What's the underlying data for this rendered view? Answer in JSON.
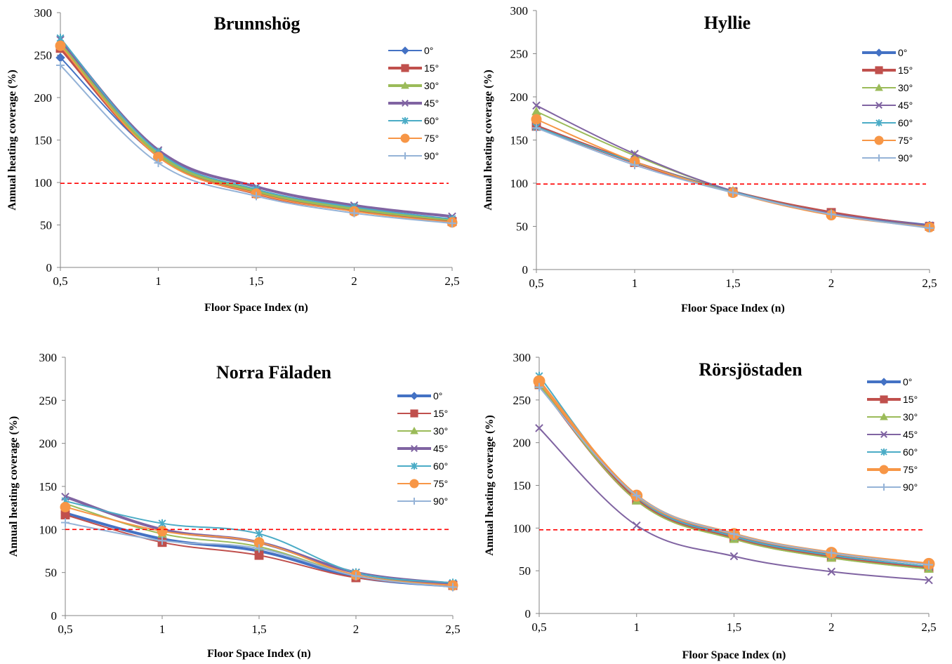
{
  "chart_data": [
    {
      "type": "line",
      "title": "Brunnshög",
      "xlabel": "Floor Space Index (n)",
      "ylabel": "Annual heating coverage (%)",
      "x": [
        0.5,
        1,
        1.5,
        2,
        2.5
      ],
      "x_tick_labels": [
        "0,5",
        "1",
        "1,5",
        "2",
        "2,5"
      ],
      "y_ticks": [
        0,
        50,
        100,
        150,
        200,
        250,
        300
      ],
      "ylim": [
        0,
        300
      ],
      "reference_line": 99,
      "legend_position": "right",
      "series": [
        {
          "name": "0°",
          "values": [
            247,
            131,
            88,
            67,
            55
          ],
          "color": "#4472C4",
          "marker": "diamond",
          "thick": false
        },
        {
          "name": "15°",
          "values": [
            258,
            131,
            87,
            67,
            54
          ],
          "color": "#C0504D",
          "marker": "square",
          "thick": true
        },
        {
          "name": "30°",
          "values": [
            263,
            133,
            90,
            69,
            56
          ],
          "color": "#9BBB59",
          "marker": "triangle",
          "thick": true
        },
        {
          "name": "45°",
          "values": [
            268,
            138,
            95,
            73,
            60
          ],
          "color": "#8064A2",
          "marker": "x",
          "thick": true
        },
        {
          "name": "60°",
          "values": [
            270,
            136,
            92,
            71,
            57
          ],
          "color": "#4BACC6",
          "marker": "star",
          "thick": false
        },
        {
          "name": "75°",
          "values": [
            261,
            130,
            87,
            66,
            53
          ],
          "color": "#F79646",
          "marker": "circle",
          "thick": false
        },
        {
          "name": "90°",
          "values": [
            238,
            123,
            84,
            64,
            52
          ],
          "color": "#95B3D7",
          "marker": "plus",
          "thick": false
        }
      ]
    },
    {
      "type": "line",
      "title": "Hyllie",
      "xlabel": "Floor Space Index (n)",
      "ylabel": "Annual heating coverage (%)",
      "x": [
        0.5,
        1,
        1.5,
        2,
        2.5
      ],
      "x_tick_labels": [
        "0,5",
        "1",
        "1,5",
        "2",
        "2,5"
      ],
      "y_ticks": [
        0,
        50,
        100,
        150,
        200,
        250,
        300
      ],
      "ylim": [
        0,
        300
      ],
      "reference_line": 99,
      "legend_position": "right",
      "series": [
        {
          "name": "0°",
          "values": [
            166,
            124,
            90,
            65,
            51
          ],
          "color": "#4472C4",
          "marker": "diamond",
          "thick": true
        },
        {
          "name": "15°",
          "values": [
            166,
            124,
            90,
            66,
            50
          ],
          "color": "#C0504D",
          "marker": "square",
          "thick": true
        },
        {
          "name": "30°",
          "values": [
            183,
            132,
            91,
            65,
            50
          ],
          "color": "#9BBB59",
          "marker": "triangle",
          "thick": false
        },
        {
          "name": "45°",
          "values": [
            190,
            134,
            91,
            65,
            51
          ],
          "color": "#8064A2",
          "marker": "x",
          "thick": false
        },
        {
          "name": "60°",
          "values": [
            165,
            124,
            90,
            64,
            49
          ],
          "color": "#4BACC6",
          "marker": "star",
          "thick": false
        },
        {
          "name": "75°",
          "values": [
            174,
            125,
            89,
            63,
            49
          ],
          "color": "#F79646",
          "marker": "circle",
          "thick": false
        },
        {
          "name": "90°",
          "values": [
            164,
            121,
            89,
            64,
            48
          ],
          "color": "#95B3D7",
          "marker": "plus",
          "thick": false
        }
      ]
    },
    {
      "type": "line",
      "title": "Norra Fäladen",
      "xlabel": "Floor Space Index (n)",
      "ylabel": "Annual heating coverage (%)",
      "x": [
        0.5,
        1,
        1.5,
        2,
        2.5
      ],
      "x_tick_labels": [
        "0,5",
        "1",
        "1,5",
        "2",
        "2,5"
      ],
      "y_ticks": [
        0,
        50,
        100,
        150,
        200,
        250,
        300
      ],
      "ylim": [
        0,
        300
      ],
      "reference_line": 100,
      "legend_position": "right",
      "series": [
        {
          "name": "0°",
          "values": [
            119,
            89,
            75,
            45,
            34
          ],
          "color": "#4472C4",
          "marker": "diamond",
          "thick": true
        },
        {
          "name": "15°",
          "values": [
            117,
            85,
            70,
            44,
            35
          ],
          "color": "#C0504D",
          "marker": "square",
          "thick": false
        },
        {
          "name": "30°",
          "values": [
            130,
            95,
            80,
            47,
            36
          ],
          "color": "#9BBB59",
          "marker": "triangle",
          "thick": false
        },
        {
          "name": "45°",
          "values": [
            138,
            100,
            85,
            50,
            37
          ],
          "color": "#8064A2",
          "marker": "x",
          "thick": true
        },
        {
          "name": "60°",
          "values": [
            133,
            107,
            95,
            50,
            38
          ],
          "color": "#4BACC6",
          "marker": "star",
          "thick": false
        },
        {
          "name": "75°",
          "values": [
            126,
            98,
            85,
            47,
            35
          ],
          "color": "#F79646",
          "marker": "circle",
          "thick": false
        },
        {
          "name": "90°",
          "values": [
            108,
            87,
            78,
            46,
            33
          ],
          "color": "#95B3D7",
          "marker": "plus",
          "thick": false
        }
      ]
    },
    {
      "type": "line",
      "title": "Rörsjöstaden",
      "xlabel": "Floor Space Index (n)",
      "ylabel": "Annual heating coverage (%)",
      "x": [
        0.5,
        1,
        1.5,
        2,
        2.5
      ],
      "x_tick_labels": [
        "0,5",
        "1",
        "1,5",
        "2",
        "2,5"
      ],
      "y_ticks": [
        0,
        50,
        100,
        150,
        200,
        250,
        300
      ],
      "ylim": [
        0,
        300
      ],
      "reference_line": 98,
      "legend_position": "right",
      "series": [
        {
          "name": "0°",
          "values": [
            270,
            135,
            90,
            68,
            54
          ],
          "color": "#4472C4",
          "marker": "diamond",
          "thick": true
        },
        {
          "name": "15°",
          "values": [
            268,
            133,
            88,
            66,
            53
          ],
          "color": "#C0504D",
          "marker": "square",
          "thick": true
        },
        {
          "name": "30°",
          "values": [
            268,
            132,
            87,
            65,
            52
          ],
          "color": "#9BBB59",
          "marker": "triangle",
          "thick": false
        },
        {
          "name": "45°",
          "values": [
            217,
            103,
            67,
            49,
            39
          ],
          "color": "#8064A2",
          "marker": "x",
          "thick": false
        },
        {
          "name": "60°",
          "values": [
            278,
            136,
            90,
            68,
            55
          ],
          "color": "#4BACC6",
          "marker": "star",
          "thick": false
        },
        {
          "name": "75°",
          "values": [
            272,
            138,
            93,
            71,
            58
          ],
          "color": "#F79646",
          "marker": "circle",
          "thick": true
        },
        {
          "name": "90°",
          "values": [
            265,
            138,
            93,
            71,
            57
          ],
          "color": "#95B3D7",
          "marker": "plus",
          "thick": false
        }
      ]
    }
  ]
}
